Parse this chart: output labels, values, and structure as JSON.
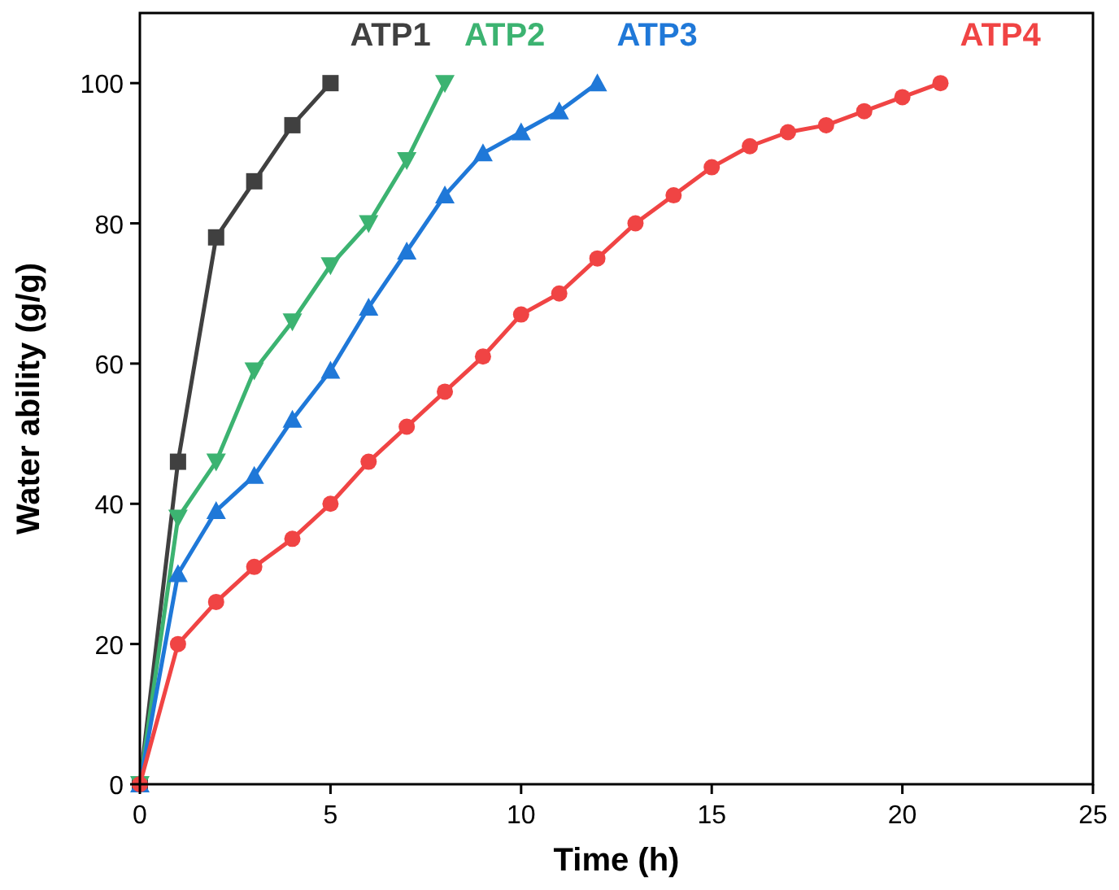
{
  "chart_data": {
    "type": "line",
    "xlabel": "Time (h)",
    "ylabel": "Water ability (g/g)",
    "xlim": [
      0,
      25
    ],
    "ylim": [
      0,
      110
    ],
    "xticks": [
      0,
      5,
      10,
      15,
      20,
      25
    ],
    "yticks": [
      0,
      20,
      40,
      60,
      80,
      100
    ],
    "grid": false,
    "line_style": "solid",
    "series": [
      {
        "name": "ATP1",
        "color": "#404040",
        "marker": "square",
        "x": [
          0,
          1,
          2,
          3,
          4,
          5
        ],
        "values": [
          0,
          46,
          78,
          86,
          94,
          100
        ]
      },
      {
        "name": "ATP2",
        "color": "#3cb371",
        "marker": "triangle-down",
        "x": [
          0,
          1,
          2,
          3,
          4,
          5,
          6,
          7,
          8
        ],
        "values": [
          0,
          38,
          46,
          59,
          66,
          74,
          80,
          89,
          100
        ]
      },
      {
        "name": "ATP3",
        "color": "#1f78d8",
        "marker": "triangle",
        "x": [
          0,
          1,
          2,
          3,
          4,
          5,
          6,
          7,
          8,
          9,
          10,
          11,
          12
        ],
        "values": [
          0,
          30,
          39,
          44,
          52,
          59,
          68,
          76,
          84,
          90,
          93,
          96,
          100
        ]
      },
      {
        "name": "ATP4",
        "color": "#f04444",
        "marker": "circle",
        "x": [
          0,
          1,
          2,
          3,
          4,
          5,
          6,
          7,
          8,
          9,
          10,
          11,
          12,
          13,
          14,
          15,
          16,
          17,
          18,
          19,
          20,
          21
        ],
        "values": [
          0,
          20,
          26,
          31,
          35,
          40,
          46,
          51,
          56,
          61,
          67,
          70,
          75,
          80,
          84,
          88,
          91,
          93,
          94,
          96,
          98,
          100
        ]
      }
    ]
  }
}
